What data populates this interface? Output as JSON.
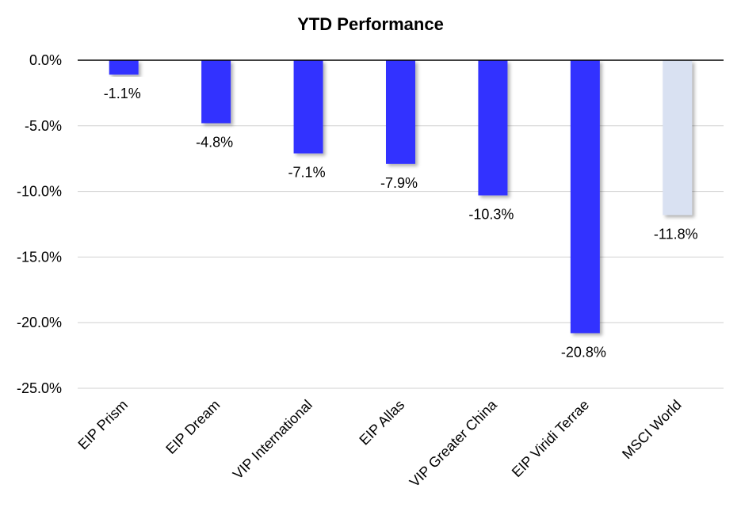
{
  "chart_data": {
    "type": "bar",
    "title": "YTD Performance",
    "xlabel": "",
    "ylabel": "",
    "ylim": [
      -25,
      0
    ],
    "yticks": [
      0,
      -5,
      -10,
      -15,
      -20,
      -25
    ],
    "ytick_labels": [
      "0.0%",
      "-5.0%",
      "-10.0%",
      "-15.0%",
      "-20.0%",
      "-25.0%"
    ],
    "grid": true,
    "legend": "none",
    "categories": [
      "EIP Prism",
      "EIP Dream",
      "VIP International",
      "EIP Allas",
      "VIP Greater China",
      "EIP Viridi Terrae",
      "MSCI World"
    ],
    "values": [
      -1.1,
      -4.8,
      -7.1,
      -7.9,
      -10.3,
      -20.8,
      -11.8
    ],
    "value_labels": [
      "-1.1%",
      "-4.8%",
      "-7.1%",
      "-7.9%",
      "-10.3%",
      "-20.8%",
      "-11.8%"
    ],
    "colors": [
      "#3333ff",
      "#3333ff",
      "#3333ff",
      "#3333ff",
      "#3333ff",
      "#3333ff",
      "#d9e1f2"
    ]
  }
}
